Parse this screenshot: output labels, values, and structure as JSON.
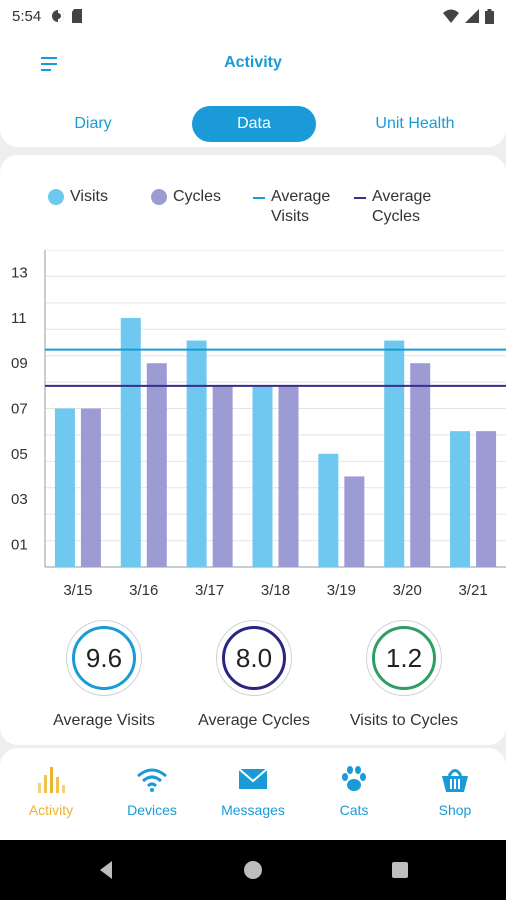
{
  "status_bar": {
    "time": "5:54"
  },
  "header": {
    "title": "Activity"
  },
  "tabs": [
    {
      "label": "Diary"
    },
    {
      "label": "Data"
    },
    {
      "label": "Unit Health"
    }
  ],
  "legend": [
    {
      "label": "Visits",
      "color": "#6ec8f0",
      "kind": "dot"
    },
    {
      "label": "Cycles",
      "color": "#9d9bd3",
      "kind": "dot"
    },
    {
      "label": "Average Visits",
      "color": "#1a9bd7",
      "kind": "line"
    },
    {
      "label": "Average Cycles",
      "color": "#3b2c8a",
      "kind": "line"
    }
  ],
  "chart_data": {
    "type": "bar",
    "categories": [
      "3/15",
      "3/16",
      "3/17",
      "3/18",
      "3/19",
      "3/20",
      "3/21"
    ],
    "series": [
      {
        "name": "Visits",
        "values": [
          7,
          11,
          10,
          8,
          5,
          10,
          6
        ],
        "color": "#6ec8f0"
      },
      {
        "name": "Cycles",
        "values": [
          7,
          9,
          8,
          8,
          4,
          9,
          6
        ],
        "color": "#9d9bd3"
      }
    ],
    "reference_lines": [
      {
        "name": "Average Visits",
        "value": 9.6,
        "color": "#1a9bd7"
      },
      {
        "name": "Average Cycles",
        "value": 8.0,
        "color": "#3b2c8a"
      }
    ],
    "yticks": [
      "01",
      "03",
      "05",
      "07",
      "09",
      "11",
      "13"
    ],
    "ytick_values": [
      1,
      3,
      5,
      7,
      9,
      11,
      13
    ],
    "ylim": [
      0,
      14
    ],
    "grid": true
  },
  "stats": [
    {
      "value": "9.6",
      "label": "Average Visits",
      "color": "#1a9bd7"
    },
    {
      "value": "8.0",
      "label": "Average Cycles",
      "color": "#2a2580"
    },
    {
      "value": "1.2",
      "label": "Visits to Cycles",
      "color": "#2e9e63"
    }
  ],
  "bottom_nav": [
    {
      "label": "Activity",
      "icon": "bar-chart-icon",
      "active": true
    },
    {
      "label": "Devices",
      "icon": "wifi-icon",
      "active": false
    },
    {
      "label": "Messages",
      "icon": "envelope-icon",
      "active": false
    },
    {
      "label": "Cats",
      "icon": "paw-icon",
      "active": false
    },
    {
      "label": "Shop",
      "icon": "basket-icon",
      "active": false
    }
  ],
  "colors": {
    "accent": "#1a9bd7",
    "active_nav": "#e9b531"
  }
}
